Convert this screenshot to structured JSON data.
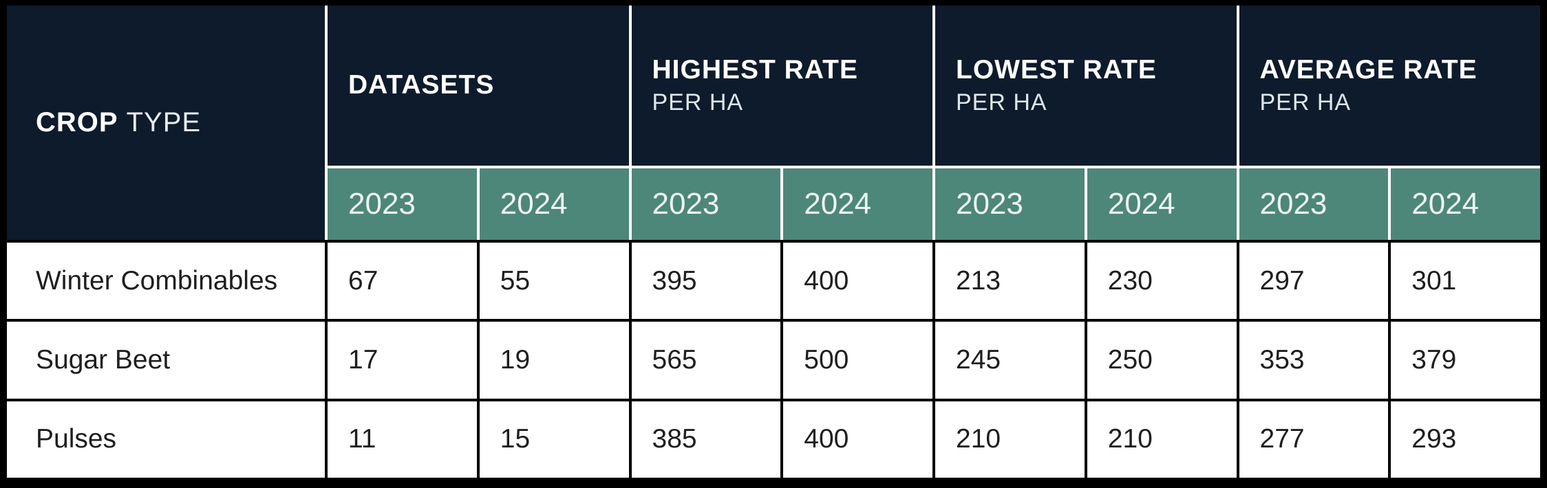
{
  "chart_data": {
    "type": "table",
    "row_header": {
      "label_bold": "CROP",
      "label_regular": "TYPE"
    },
    "column_groups": [
      {
        "title": "DATASETS",
        "subtitle": ""
      },
      {
        "title": "HIGHEST RATE",
        "subtitle": "PER HA"
      },
      {
        "title": "LOWEST RATE",
        "subtitle": "PER HA"
      },
      {
        "title": "AVERAGE RATE",
        "subtitle": "PER HA"
      }
    ],
    "year_columns": [
      "2023",
      "2024",
      "2023",
      "2024",
      "2023",
      "2024",
      "2023",
      "2024"
    ],
    "rows": [
      {
        "crop": "Winter Combinables",
        "values": [
          67,
          55,
          395,
          400,
          213,
          230,
          297,
          301
        ]
      },
      {
        "crop": "Sugar Beet",
        "values": [
          17,
          19,
          565,
          500,
          245,
          250,
          353,
          379
        ]
      },
      {
        "crop": "Pulses",
        "values": [
          11,
          15,
          385,
          400,
          210,
          210,
          277,
          293
        ]
      }
    ],
    "colors": {
      "header_bg": "#0d1b2c",
      "year_row_bg": "#4d8779",
      "body_bg": "#ffffff",
      "header_text": "#ffffff",
      "year_text": "#eef4f1",
      "body_text": "#1e1e1e",
      "header_gridlines": "#ffffff",
      "body_gridlines": "#000000"
    },
    "layout": {
      "grid": "on",
      "header_rows": 2,
      "data_columns_per_group": 2
    }
  }
}
